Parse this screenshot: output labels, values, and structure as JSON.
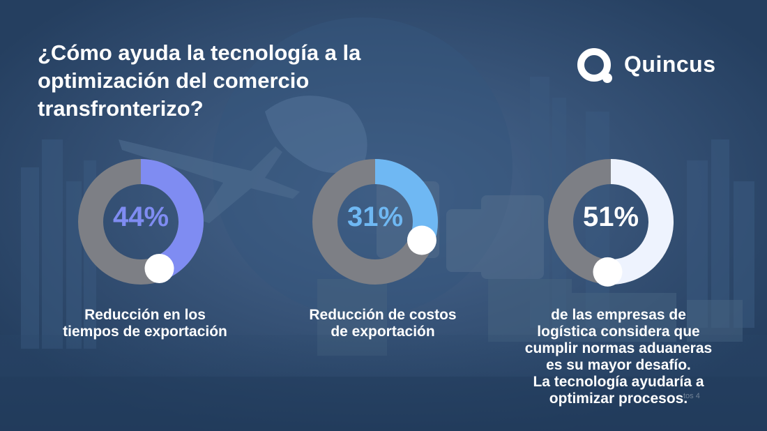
{
  "title": "¿Cómo ayuda la tecnología a la optimización del comercio transfronterizo?",
  "brand": {
    "name": "Quincus",
    "logo_icon": "quincus-q-icon"
  },
  "colors": {
    "track": "#7d7f85",
    "stat1": "#7f8cf2",
    "stat2": "#6fb8f3",
    "stat3": "#eef3fe",
    "knob": "#ffffff"
  },
  "chart_data": [
    {
      "type": "pie",
      "values": [
        44
      ],
      "value_label": "44%",
      "label_lines": [
        "Reducción en  los",
        "tiempos de exportación"
      ]
    },
    {
      "type": "pie",
      "values": [
        31
      ],
      "value_label": "31%",
      "label_lines": [
        "Reducción de costos",
        "de exportación"
      ]
    },
    {
      "type": "pie",
      "values": [
        51
      ],
      "value_label": "51%",
      "label_lines": [
        "de las empresas de",
        "logística considera que",
        "cumplir normas aduaneras",
        "es su mayor desafío.",
        "La tecnología ayudaría a",
        "optimizar procesos."
      ]
    }
  ],
  "watermark_fragment": "tos 4"
}
